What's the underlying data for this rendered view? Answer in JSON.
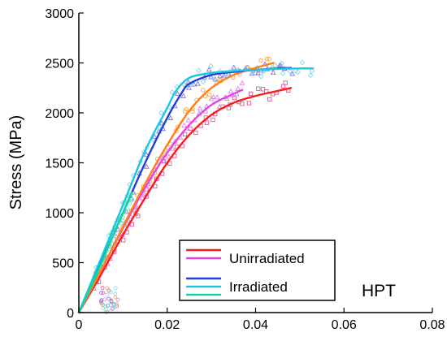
{
  "chart_data": {
    "type": "line",
    "title": "",
    "annotation": "HPT",
    "xlabel": "",
    "ylabel": "Stress (MPa)",
    "xlim": [
      0,
      0.08
    ],
    "ylim": [
      0,
      3000
    ],
    "x_ticks": [
      "0",
      "0.02",
      "0.04",
      "0.06",
      "0.08"
    ],
    "y_ticks": [
      "0",
      "500",
      "1000",
      "1500",
      "2000",
      "2500",
      "3000"
    ],
    "grid": false,
    "legend": {
      "placement": "bottom-center",
      "entries": [
        {
          "label": "Unirradiated",
          "colors": [
            "#ff1a1a",
            "#e642e6",
            "#ff7f1a"
          ]
        },
        {
          "label": "Irradiated",
          "colors": [
            "#1f3fd9",
            "#19c7e0",
            "#12d6a0"
          ]
        }
      ]
    },
    "series": [
      {
        "group": "Unirradiated",
        "color": "#ff1a1a",
        "marker_color": "#e0569c",
        "marker": "square",
        "x": [
          0,
          0.005,
          0.01,
          0.015,
          0.02,
          0.025,
          0.03,
          0.035,
          0.04,
          0.045,
          0.048
        ],
        "y": [
          0,
          380,
          780,
          1150,
          1500,
          1780,
          1980,
          2100,
          2170,
          2220,
          2250
        ]
      },
      {
        "group": "Unirradiated",
        "color": "#e642e6",
        "marker_color": "#d883ea",
        "marker": "triangle",
        "x": [
          0,
          0.005,
          0.01,
          0.015,
          0.02,
          0.025,
          0.03,
          0.035,
          0.037
        ],
        "y": [
          0,
          420,
          850,
          1250,
          1600,
          1880,
          2080,
          2190,
          2230
        ]
      },
      {
        "group": "Unirradiated",
        "color": "#ff7f1a",
        "marker_color": "#f0a840",
        "marker": "circle",
        "x": [
          0,
          0.005,
          0.01,
          0.015,
          0.02,
          0.025,
          0.03,
          0.035,
          0.04,
          0.044
        ],
        "y": [
          0,
          420,
          860,
          1290,
          1680,
          2020,
          2250,
          2380,
          2450,
          2500
        ]
      },
      {
        "group": "Irradiated",
        "color": "#1f3fd9",
        "marker_color": "#8b6fe0",
        "marker": "triangle",
        "x": [
          0,
          0.005,
          0.01,
          0.015,
          0.02,
          0.023,
          0.025,
          0.03,
          0.035,
          0.04,
          0.045,
          0.048
        ],
        "y": [
          0,
          500,
          1000,
          1500,
          1950,
          2180,
          2290,
          2380,
          2410,
          2430,
          2445,
          2450
        ]
      },
      {
        "group": "Irradiated",
        "color": "#19c7e0",
        "marker_color": "#7fd8f0",
        "marker": "diamond",
        "x": [
          0,
          0.005,
          0.01,
          0.015,
          0.02,
          0.022,
          0.025,
          0.03,
          0.035,
          0.04,
          0.045,
          0.05,
          0.053
        ],
        "y": [
          0,
          540,
          1080,
          1620,
          2050,
          2220,
          2350,
          2400,
          2420,
          2430,
          2440,
          2445,
          2445
        ]
      },
      {
        "group": "Irradiated",
        "color": "#12d6a0",
        "marker_color": "#7fe3c8",
        "marker": "circle",
        "x": [
          0,
          0.004,
          0.008,
          0.012
        ],
        "y": [
          0,
          380,
          800,
          1200
        ]
      }
    ]
  }
}
